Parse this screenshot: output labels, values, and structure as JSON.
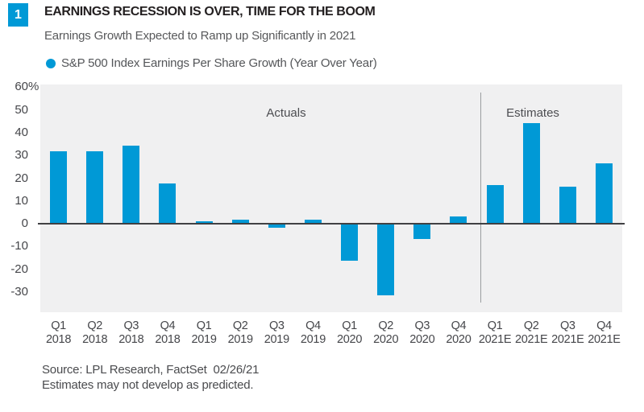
{
  "badge": {
    "number": "1"
  },
  "header": {
    "title": "EARNINGS RECESSION IS OVER, TIME FOR THE BOOM",
    "subtitle": "Earnings Growth Expected to Ramp up Significantly in 2021"
  },
  "legend": {
    "marker": "circle",
    "label": "S&P 500 Index Earnings Per Share Growth (Year Over Year)"
  },
  "footer": {
    "source": "Source: LPL Research, FactSet  02/26/21",
    "disclaimer": "Estimates may not develop as predicted."
  },
  "colors": {
    "accent_blue": "#0099d6",
    "plot_background": "#f0f0f1",
    "axis_line": "#404043",
    "separator_line": "#9b9da0",
    "title_text": "#231f20",
    "gray_text": "#58595b",
    "tick_text": "#45464a"
  },
  "chart_data": {
    "type": "bar",
    "title": "EARNINGS RECESSION IS OVER, TIME FOR THE BOOM",
    "subtitle": "Earnings Growth Expected to Ramp up Significantly in 2021",
    "categories": [
      "Q1 2018",
      "Q2 2018",
      "Q3 2018",
      "Q4 2018",
      "Q1 2019",
      "Q2 2019",
      "Q3 2019",
      "Q4 2019",
      "Q1 2020",
      "Q2 2020",
      "Q3 2020",
      "Q4 2020",
      "Q1 2021E",
      "Q2 2021E",
      "Q3 2021E",
      "Q4 2021E"
    ],
    "category_line1": [
      "Q1",
      "Q2",
      "Q3",
      "Q4",
      "Q1",
      "Q2",
      "Q3",
      "Q4",
      "Q1",
      "Q2",
      "Q3",
      "Q4",
      "Q1",
      "Q2",
      "Q3",
      "Q4"
    ],
    "category_line2": [
      "2018",
      "2018",
      "2018",
      "2018",
      "2019",
      "2019",
      "2019",
      "2019",
      "2020",
      "2020",
      "2020",
      "2020",
      "2021E",
      "2021E",
      "2021E",
      "2021E"
    ],
    "series": [
      {
        "name": "S&P 500 Index Earnings Per Share Growth (Year Over Year)",
        "values": [
          31.5,
          31.5,
          34,
          17.5,
          1,
          1.5,
          -2,
          1.5,
          -16.5,
          -31.5,
          -7,
          3,
          17,
          44,
          16,
          26.5
        ]
      }
    ],
    "xlabel": "",
    "ylabel": "",
    "ylim": [
      -39,
      61
    ],
    "yticks": [
      60,
      50,
      40,
      30,
      20,
      10,
      0,
      -10,
      -20,
      -30
    ],
    "ytick_first_suffix": "%",
    "grid": false,
    "legend_position": "top-left",
    "bar_color": "#0099d6",
    "annotations": [
      {
        "text": "Actuals",
        "region": "actuals"
      },
      {
        "text": "Estimates",
        "region": "estimates"
      }
    ],
    "separator_after_index": 11
  }
}
